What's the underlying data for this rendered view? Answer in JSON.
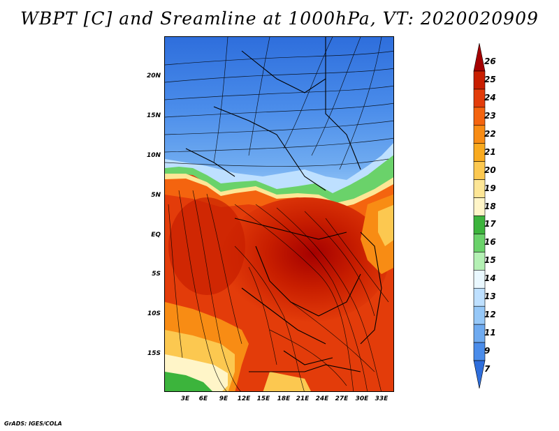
{
  "title": "WBPT [C] and Sreamline at 1000hPa, VT: 2020020909",
  "footer": "GrADS: IGES/COLA",
  "map": {
    "y_ticks": [
      "20N",
      "15N",
      "10N",
      "5N",
      "EQ",
      "5S",
      "10S",
      "15S"
    ],
    "x_ticks": [
      "3E",
      "6E",
      "9E",
      "12E",
      "15E",
      "18E",
      "21E",
      "24E",
      "27E",
      "30E",
      "33E"
    ]
  },
  "colorbar": {
    "levels": [
      "26",
      "25",
      "24",
      "23",
      "22",
      "21",
      "20",
      "19",
      "18",
      "17",
      "16",
      "15",
      "14",
      "13",
      "12",
      "11",
      "9",
      "7"
    ],
    "colors": [
      "#a50000",
      "#c81e00",
      "#e33c0a",
      "#f4640f",
      "#f88c14",
      "#f9aa1e",
      "#fcc850",
      "#fde696",
      "#fff5c8",
      "#3cb43c",
      "#6ad26a",
      "#b4f0b4",
      "#eaf8ff",
      "#bee0ff",
      "#96c8f8",
      "#6eaaf0",
      "#4a8cea",
      "#2e6edc"
    ]
  },
  "chart_data": {
    "type": "heatmap",
    "title": "WBPT [C] and Sreamline at 1000hPa, VT: 2020020909",
    "x_ticks": [
      "3E",
      "6E",
      "9E",
      "12E",
      "15E",
      "18E",
      "21E",
      "24E",
      "27E",
      "30E",
      "33E"
    ],
    "y_ticks": [
      "20N",
      "15N",
      "10N",
      "5N",
      "EQ",
      "5S",
      "10S",
      "15S"
    ],
    "colorbar_levels": [
      7,
      9,
      11,
      12,
      13,
      14,
      15,
      16,
      17,
      18,
      19,
      20,
      21,
      22,
      23,
      24,
      25,
      26
    ]
  }
}
